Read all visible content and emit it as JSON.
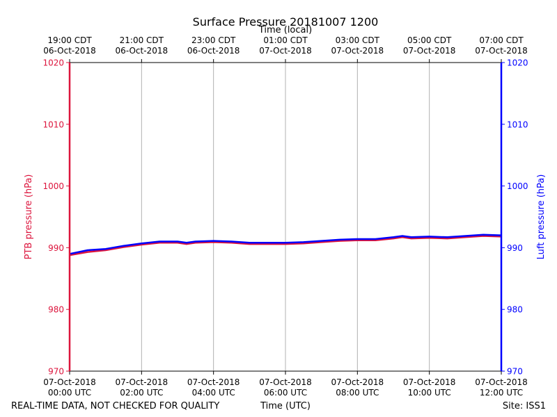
{
  "chart_data": {
    "type": "line",
    "title": "Surface Pressure 20181007 1200",
    "top_xlabel": "Time (local)",
    "xlabel": "Time (UTC)",
    "ylabel_left": "PTB pressure (hPa)",
    "ylabel_right": "Luft pressure (hPa)",
    "xlim_hours": [
      0,
      12
    ],
    "ylim": [
      970,
      1020
    ],
    "y_ticks": [
      "970",
      "980",
      "990",
      "1000",
      "1010",
      "1020"
    ],
    "y_tick_values": [
      970,
      980,
      990,
      1000,
      1010,
      1020
    ],
    "x_tick_hours": [
      0,
      2,
      4,
      6,
      8,
      10,
      12
    ],
    "x_ticks_utc": [
      {
        "date": "07-Oct-2018",
        "time": "00:00 UTC"
      },
      {
        "date": "07-Oct-2018",
        "time": "02:00 UTC"
      },
      {
        "date": "07-Oct-2018",
        "time": "04:00 UTC"
      },
      {
        "date": "07-Oct-2018",
        "time": "06:00 UTC"
      },
      {
        "date": "07-Oct-2018",
        "time": "08:00 UTC"
      },
      {
        "date": "07-Oct-2018",
        "time": "10:00 UTC"
      },
      {
        "date": "07-Oct-2018",
        "time": "12:00 UTC"
      }
    ],
    "x_ticks_local": [
      {
        "time": "19:00 CDT",
        "date": "06-Oct-2018"
      },
      {
        "time": "21:00 CDT",
        "date": "06-Oct-2018"
      },
      {
        "time": "23:00 CDT",
        "date": "06-Oct-2018"
      },
      {
        "time": "01:00 CDT",
        "date": "07-Oct-2018"
      },
      {
        "time": "03:00 CDT",
        "date": "07-Oct-2018"
      },
      {
        "time": "05:00 CDT",
        "date": "07-Oct-2018"
      },
      {
        "time": "07:00 CDT",
        "date": "07-Oct-2018"
      }
    ],
    "grid": "vertical",
    "series": [
      {
        "name": "PTB pressure",
        "color": "#dc143c",
        "x_hours": [
          0,
          0.5,
          1,
          1.5,
          2,
          2.5,
          3,
          3.25,
          3.5,
          4,
          4.5,
          5,
          5.5,
          6,
          6.5,
          7,
          7.5,
          8,
          8.5,
          9,
          9.25,
          9.5,
          10,
          10.5,
          11,
          11.5,
          12
        ],
        "values": [
          988.8,
          989.3,
          989.6,
          990.1,
          990.5,
          990.8,
          990.8,
          990.6,
          990.8,
          990.9,
          990.8,
          990.6,
          990.6,
          990.6,
          990.7,
          990.9,
          991.1,
          991.2,
          991.2,
          991.5,
          991.7,
          991.5,
          991.6,
          991.5,
          991.7,
          991.9,
          991.8
        ]
      },
      {
        "name": "Luft pressure",
        "color": "#0000ff",
        "x_hours": [
          0,
          0.5,
          1,
          1.5,
          2,
          2.5,
          3,
          3.25,
          3.5,
          4,
          4.5,
          5,
          5.5,
          6,
          6.5,
          7,
          7.5,
          8,
          8.5,
          9,
          9.25,
          9.5,
          10,
          10.5,
          11,
          11.5,
          12
        ],
        "values": [
          989.0,
          989.6,
          989.8,
          990.3,
          990.7,
          991.0,
          991.0,
          990.8,
          991.0,
          991.1,
          991.0,
          990.8,
          990.8,
          990.8,
          990.9,
          991.1,
          991.3,
          991.4,
          991.4,
          991.7,
          991.9,
          991.7,
          991.8,
          991.7,
          991.9,
          992.1,
          992.0
        ]
      }
    ]
  },
  "footer": {
    "left": "REAL-TIME DATA, NOT CHECKED FOR QUALITY",
    "right": "Site: ISS1"
  }
}
